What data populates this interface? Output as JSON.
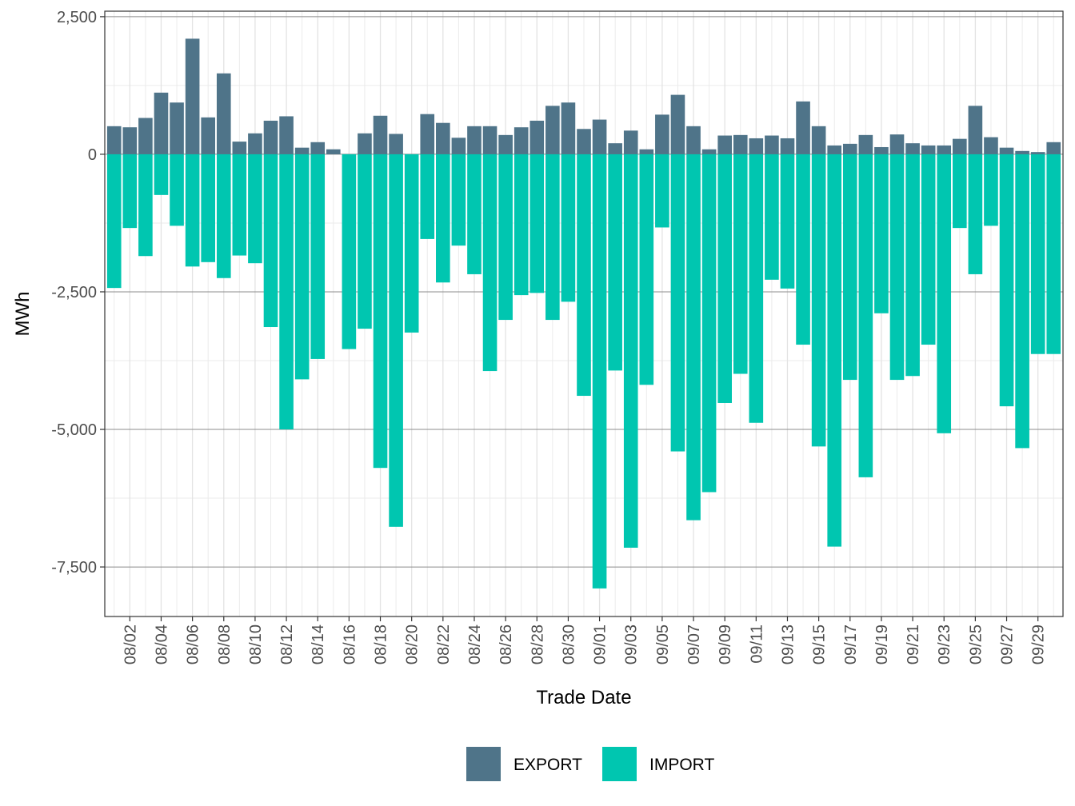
{
  "chart_data": {
    "type": "bar",
    "stacked": true,
    "xlabel": "Trade Date",
    "ylabel": "MWh",
    "ylim": [
      -8400,
      2600
    ],
    "y_ticks": [
      2500,
      0,
      -2500,
      -5000,
      -7500
    ],
    "y_tick_labels": [
      "2,500",
      "0",
      "-2,500",
      "-5,000",
      "-7,500"
    ],
    "categories": [
      "08/01",
      "08/02",
      "08/03",
      "08/04",
      "08/05",
      "08/06",
      "08/07",
      "08/08",
      "08/09",
      "08/10",
      "08/11",
      "08/12",
      "08/13",
      "08/14",
      "08/15",
      "08/16",
      "08/17",
      "08/18",
      "08/19",
      "08/20",
      "08/21",
      "08/22",
      "08/23",
      "08/24",
      "08/25",
      "08/26",
      "08/27",
      "08/28",
      "08/29",
      "08/30",
      "08/31",
      "09/01",
      "09/02",
      "09/03",
      "09/04",
      "09/05",
      "09/06",
      "09/07",
      "09/08",
      "09/09",
      "09/10",
      "09/11",
      "09/12",
      "09/13",
      "09/14",
      "09/15",
      "09/16",
      "09/17",
      "09/18",
      "09/19",
      "09/20",
      "09/21",
      "09/22",
      "09/23",
      "09/24",
      "09/25",
      "09/26",
      "09/27",
      "09/28",
      "09/29",
      "09/30"
    ],
    "x_tick_labels": [
      "08/02",
      "08/04",
      "08/06",
      "08/08",
      "08/10",
      "08/12",
      "08/14",
      "08/16",
      "08/18",
      "08/20",
      "08/22",
      "08/24",
      "08/26",
      "08/28",
      "08/30",
      "09/01",
      "09/03",
      "09/05",
      "09/07",
      "09/09",
      "09/11",
      "09/13",
      "09/15",
      "09/17",
      "09/19",
      "09/21",
      "09/23",
      "09/25",
      "09/27",
      "09/29"
    ],
    "series": [
      {
        "name": "EXPORT",
        "color": "#4f7489",
        "values": [
          510,
          490,
          660,
          1120,
          940,
          2100,
          670,
          1470,
          230,
          380,
          610,
          690,
          120,
          220,
          90,
          null,
          380,
          700,
          370,
          0,
          730,
          570,
          300,
          510,
          510,
          350,
          490,
          610,
          880,
          940,
          460,
          630,
          200,
          430,
          90,
          720,
          1080,
          510,
          90,
          340,
          350,
          290,
          340,
          290,
          960,
          510,
          160,
          190,
          350,
          130,
          360,
          200,
          160,
          160,
          280,
          880,
          310,
          120,
          60,
          40,
          220
        ]
      },
      {
        "name": "IMPORT",
        "color": "#00c6b0",
        "values": [
          -2430,
          -1340,
          -1850,
          -740,
          -1300,
          -2040,
          -1960,
          -2250,
          -1840,
          -1980,
          -3140,
          -5000,
          -4090,
          -3720,
          null,
          -3540,
          -3170,
          -5700,
          -6770,
          -3240,
          -1540,
          -2330,
          -1660,
          -2180,
          -3940,
          -3010,
          -2560,
          -2520,
          -3010,
          -2680,
          -4390,
          -7890,
          -3930,
          -7150,
          -4190,
          -1330,
          -5400,
          -6650,
          -6140,
          -4520,
          -3990,
          -4880,
          -2280,
          -2440,
          -3460,
          -5310,
          -7130,
          -4100,
          -5870,
          -2890,
          -4100,
          -4030,
          -3460,
          -5070,
          -1340,
          -2180,
          -1300,
          -4580,
          -5340,
          -3630,
          -3630
        ]
      }
    ],
    "legend": {
      "position": "bottom",
      "items": [
        {
          "label": "EXPORT",
          "color": "#4f7489"
        },
        {
          "label": "IMPORT",
          "color": "#00c6b0"
        }
      ]
    }
  }
}
